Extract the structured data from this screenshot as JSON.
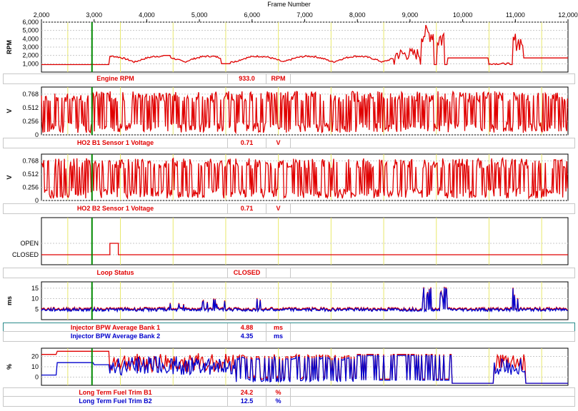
{
  "header": {
    "title": "Frame Number"
  },
  "x_axis": {
    "min": 2000,
    "max": 12000,
    "ticks": [
      "2,000",
      "3,000",
      "4,000",
      "5,000",
      "6,000",
      "7,000",
      "8,000",
      "9,000",
      "10,000",
      "11,000",
      "12,000"
    ],
    "cursor_frame": 2960
  },
  "colors": {
    "series1": "#e00000",
    "series2": "#0000cc",
    "cursor": "#008800",
    "grid": "#e8e86a",
    "panel_border": "#000000"
  },
  "panels": [
    {
      "id": "rpm",
      "ylabel": "RPM",
      "yticks": [
        "6,000",
        "5,000",
        "4,000",
        "3,000",
        "2,000",
        "1,000"
      ],
      "ymin": 0,
      "ymax": 6000,
      "rows": [
        {
          "name": "Engine RPM",
          "value": "933.0",
          "unit": "RPM",
          "color": "red"
        }
      ]
    },
    {
      "id": "ho2b1",
      "ylabel": "V",
      "yticks": [
        "0.768",
        "0.512",
        "0.256",
        "0"
      ],
      "ymin": 0,
      "ymax": 0.9,
      "rows": [
        {
          "name": "HO2 B1 Sensor 1 Voltage",
          "value": "0.71",
          "unit": "V",
          "color": "red"
        }
      ]
    },
    {
      "id": "ho2b2",
      "ylabel": "V",
      "yticks": [
        "0.768",
        "0.512",
        "0.256",
        "0"
      ],
      "ymin": 0,
      "ymax": 0.9,
      "rows": [
        {
          "name": "HO2 B2 Sensor 1 Voltage",
          "value": "0.71",
          "unit": "V",
          "color": "red"
        }
      ]
    },
    {
      "id": "loop",
      "ylabel": "",
      "yticks": [
        "OPEN",
        "CLOSED"
      ],
      "rows": [
        {
          "name": "Loop Status",
          "value": "CLOSED",
          "unit": "",
          "color": "red"
        }
      ]
    },
    {
      "id": "bpw",
      "ylabel": "ms",
      "yticks": [
        "15",
        "10",
        "5"
      ],
      "ymin": 0,
      "ymax": 18,
      "rows": [
        {
          "name": "Injector BPW Average Bank 1",
          "value": "4.88",
          "unit": "ms",
          "color": "red"
        },
        {
          "name": "Injector BPW Average Bank 2",
          "value": "4.35",
          "unit": "ms",
          "color": "blue"
        }
      ]
    },
    {
      "id": "ltft",
      "ylabel": "%",
      "yticks": [
        "20",
        "10",
        "0"
      ],
      "ymin": -8,
      "ymax": 28,
      "rows": [
        {
          "name": "Long Term Fuel Trim B1",
          "value": "24.2",
          "unit": "%",
          "color": "red"
        },
        {
          "name": "Long Term Fuel Trim B2",
          "value": "12.5",
          "unit": "%",
          "color": "blue"
        }
      ]
    }
  ]
}
